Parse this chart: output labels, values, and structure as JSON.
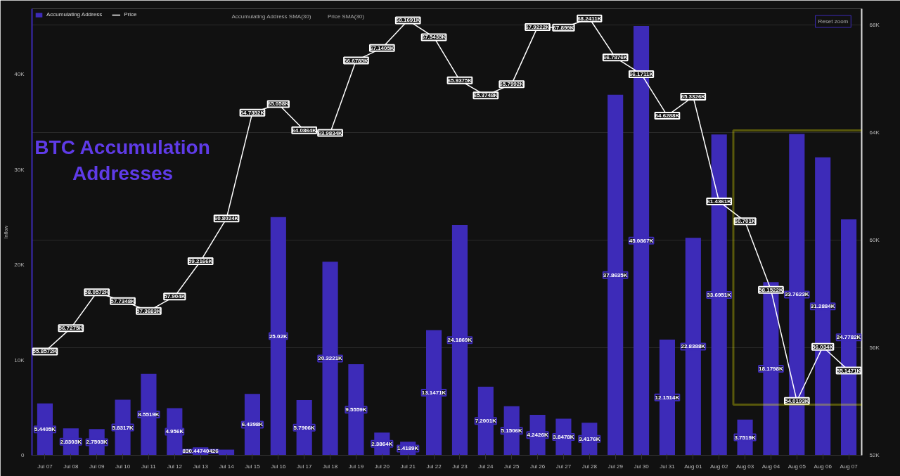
{
  "chart_data": {
    "type": "bar",
    "title": "BTC Accumulation Addresses",
    "ylabel": "Inflow",
    "categories": [
      "Jul 07",
      "Jul 08",
      "Jul 09",
      "Jul 10",
      "Jul 11",
      "Jul 12",
      "Jul 13",
      "Jul 14",
      "Jul 15",
      "Jul 16",
      "Jul 17",
      "Jul 18",
      "Jul 19",
      "Jul 20",
      "Jul 21",
      "Jul 22",
      "Jul 23",
      "Jul 24",
      "Jul 25",
      "Jul 26",
      "Jul 27",
      "Jul 28",
      "Jul 29",
      "Jul 30",
      "Jul 31",
      "Aug 01",
      "Aug 02",
      "Aug 03",
      "Aug 04",
      "Aug 05",
      "Aug 06",
      "Aug 07"
    ],
    "series": [
      {
        "name": "Accumulating Address",
        "color": "#3d2bb8",
        "values": [
          5440.5,
          2830.3,
          2750.3,
          5831.7,
          8551.9,
          4956,
          830.44740426,
          600,
          6439.8,
          25020,
          5790.6,
          20322.1,
          9555.9,
          2386.4,
          1418.9,
          13147.1,
          24186.9,
          7200.1,
          5150.6,
          4242.6,
          3847.8,
          3417.6,
          37863.5,
          45086.7,
          12151.4,
          22838.8,
          33695.1,
          3751.9,
          18179.8,
          33762.3,
          31288.4,
          24778.2
        ],
        "value_labels": [
          "5.4405K",
          "2.8303K",
          "2.7503K",
          "5.8317K",
          "8.5519K",
          "4.956K",
          "830.44740426",
          null,
          "6.4398K",
          "25.02K",
          "5.7906K",
          "20.3221K",
          "9.5559K",
          "2.3864K",
          "1.4189K",
          "13.1471K",
          "24.1869K",
          "7.2001K",
          "5.1506K",
          "4.2426K",
          "3.8478K",
          "3.4176K",
          "37.8635K",
          "45.0867K",
          "12.1514K",
          "22.8388K",
          "33.6951K",
          "3.7519K",
          "18.1798K",
          "33.7623K",
          "31.2884K",
          "24.7782K"
        ]
      },
      {
        "name": "Price",
        "type": "line",
        "axis": "y2",
        "color": "#ffffff",
        "values": [
          55857.2,
          56727.5,
          58057.2,
          57734.8,
          57368.3,
          57904,
          59216.6,
          60802.4,
          64735.2,
          65058,
          64086.4,
          63983.4,
          66678.5,
          67140.5,
          68169.1,
          67543.5,
          65937.5,
          65374.8,
          65799.2,
          67922.2,
          67899,
          68241.1,
          66787.6,
          66171.1,
          64628.8,
          65332.6,
          61436.1,
          60701,
          58152.2,
          54019.3,
          56034,
          55147.1
        ],
        "value_labels": [
          "55.8572K",
          "56.7275K",
          "58.0572K",
          "57.7348K",
          "57.3683K",
          "57.904K",
          "59.2166K",
          "60.8024K",
          "64.7352K",
          "65.058K",
          "64.0864K",
          "63.9834K",
          "66.6785K",
          "67.1405K",
          "68.1691K",
          "67.5435K",
          "65.9375K",
          "65.3748K",
          "65.7992K",
          "67.9222K",
          "67.899K",
          "68.2411K",
          "66.7876K",
          "66.1711K",
          "64.6288K",
          "65.3326K",
          "61.4361K",
          "60.701K",
          "58.1522K",
          "54.0193K",
          "56.034K",
          "55.1471K"
        ]
      }
    ],
    "ylim": [
      0,
      46900
    ],
    "yticks": [
      {
        "value": 0,
        "label": "0"
      },
      {
        "value": 10000,
        "label": "10K"
      },
      {
        "value": 20000,
        "label": "20K"
      },
      {
        "value": 30000,
        "label": "30K"
      },
      {
        "value": 40000,
        "label": "40K"
      }
    ],
    "y2lim": [
      52000,
      68600
    ],
    "y2ticks": [
      {
        "value": 52000,
        "label": "52K"
      },
      {
        "value": 56000,
        "label": "56K"
      },
      {
        "value": 60000,
        "label": "60K"
      },
      {
        "value": 64000,
        "label": "64K"
      },
      {
        "value": 68000,
        "label": "68K"
      }
    ],
    "grid": "y2",
    "legend": "top",
    "annotations": [
      "Accumulating Address SMA(30)",
      "Price SMA(30)",
      "Reset zoom"
    ]
  }
}
